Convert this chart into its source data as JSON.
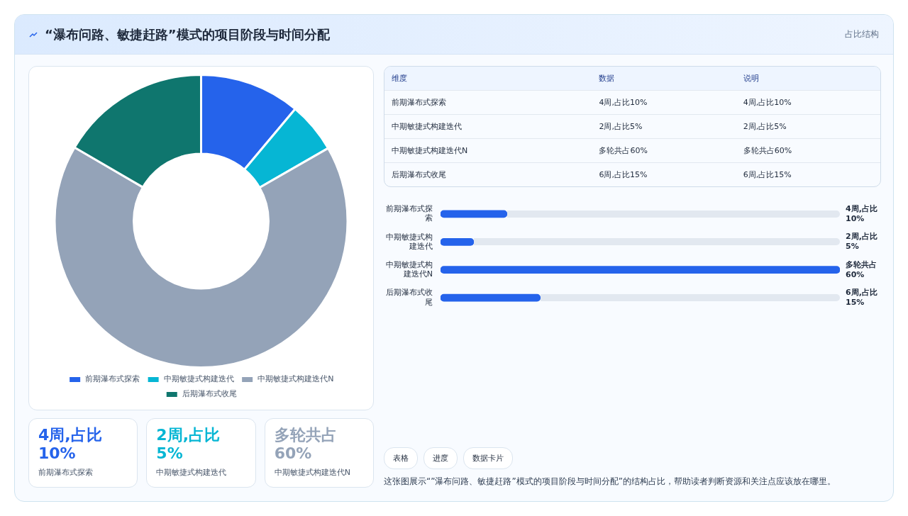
{
  "chart_data": [
    {
      "type": "donut",
      "title": "“瀑布问路、敏捷赶路”模式的项目阶段与时间分配",
      "categories": [
        "前期瀑布式探索",
        "中期敏捷式构建迭代",
        "中期敏捷式构建迭代N",
        "后期瀑布式收尾"
      ],
      "values": [
        11.1,
        5.6,
        66.7,
        16.6
      ],
      "colors": [
        "#2563eb",
        "#06b6d4",
        "#94a3b8",
        "#0f766e"
      ],
      "legend": "bottom",
      "annotations": [
        "占比结构",
        "维度",
        "数据",
        "说明",
        "4周,占比10%",
        "2周,占比5%",
        "多轮共占60%",
        "6周,占比15%",
        "表格",
        "进度",
        "数据卡片",
        "这张图展示“”瀑布问路、敏捷赶路”模式的项目阶段与时间分配”的结构占比，帮助读者判断资源和关注点应该放在哪里。"
      ]
    },
    {
      "type": "bar",
      "orientation": "horizontal",
      "categories": [
        "前期瀑布式探索",
        "中期敏捷式构建迭代",
        "中期敏捷式构建迭代N",
        "后期瀑布式收尾"
      ],
      "values": [
        10,
        5,
        60,
        15
      ],
      "color": "#2563eb",
      "value_labels": [
        "4周,占比10%",
        "2周,占比5%",
        "多轮共占60%",
        "6周,占比15%"
      ],
      "tick_labels": "y"
    }
  ]
}
